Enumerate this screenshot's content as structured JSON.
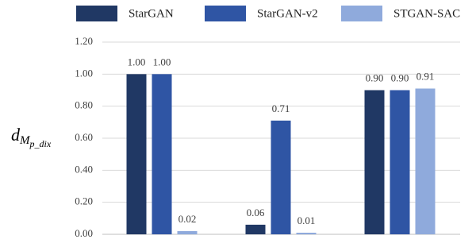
{
  "chart_data": {
    "type": "bar",
    "y_label": [
      "d",
      "M",
      "p_dix"
    ],
    "categories": [
      null,
      null,
      null
    ],
    "series": [
      {
        "name": "StarGAN",
        "color": "#203864",
        "values": [
          1.0,
          0.06,
          0.9
        ],
        "value_labels": [
          "1.00",
          "0.06",
          "0.90"
        ]
      },
      {
        "name": "StarGAN-v2",
        "color": "#2f55a4",
        "values": [
          1.0,
          0.71,
          0.9
        ],
        "value_labels": [
          "1.00",
          "0.71",
          "0.90"
        ]
      },
      {
        "name": "STGAN-SAC",
        "color": "#8faadc",
        "values": [
          0.02,
          0.01,
          0.91
        ],
        "value_labels": [
          "0.02",
          "0.01",
          "0.91"
        ]
      }
    ],
    "ylim": [
      0,
      1.2
    ],
    "yticks": [
      {
        "value": 0,
        "label": "0.00"
      },
      {
        "value": 0.2,
        "label": "0.20"
      },
      {
        "value": 0.4,
        "label": "0.40"
      },
      {
        "value": 0.6,
        "label": "0.60"
      },
      {
        "value": 0.8,
        "label": "0.80"
      },
      {
        "value": 1.0,
        "label": "1.00"
      },
      {
        "value": 1.2,
        "label": "1.20"
      }
    ],
    "grid": true,
    "legend": "top"
  }
}
